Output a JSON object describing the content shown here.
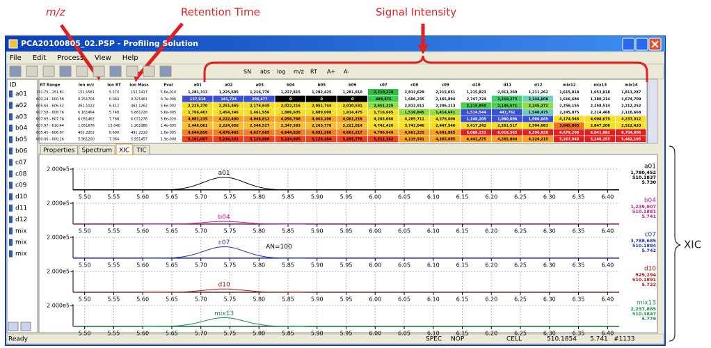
{
  "annotations": {
    "mz": "m/z",
    "retention_time": "Retention Time",
    "signal_intensity": "Signal Intensity",
    "xic": "XIC"
  },
  "window": {
    "title": "PCA20100805_02.PSP - Profiling Solution"
  },
  "menu": [
    "File",
    "Edit",
    "Process",
    "View",
    "Help"
  ],
  "toolbar": [
    "SN",
    "abs",
    "log",
    "m/z",
    "RT",
    "A+",
    "A-"
  ],
  "id_list": {
    "header": "ID",
    "items": [
      "a01",
      "a02",
      "a03",
      "b04",
      "b05",
      "b06",
      "c07",
      "c08",
      "c09",
      "d10",
      "d11",
      "d12",
      "mix",
      "mix",
      "mix"
    ]
  },
  "table": {
    "header": [
      "RT Range",
      "Ion m/z",
      "Ion RT",
      "Ion Mass",
      "Pval",
      "a01",
      "a02",
      "a03",
      "b04",
      "b05",
      "b06",
      "c07",
      "c08",
      "c09",
      "d10",
      "d11",
      "d12",
      "mix12",
      "mix13",
      "mix14"
    ],
    "rows": [
      {
        "cells": [
          "151.75 - 151.81",
          "151.1581",
          "5.270",
          "152.1417",
          "5.6e-010",
          "1,281,313",
          "1,225,695",
          "1,216,776",
          "1,227,815",
          "1,282,425",
          "1,281,810",
          "2,210,229",
          "2,812,629",
          "2,215,051",
          "1,215,823",
          "2,011,209",
          "1,211,262",
          "1,615,818",
          "1,653,818",
          "1,811,287"
        ],
        "colors": [
          "#ffffff",
          "#ffffff",
          "#ffffff",
          "#ffffff",
          "#ffffff",
          "#ffffff",
          "#2fbf3f",
          "#ffffff",
          "#ffffff",
          "#ffffff",
          "#ffffff",
          "#ffffff",
          "#ffffff",
          "#ffffff",
          "#ffffff"
        ]
      },
      {
        "cells": [
          "600.24 - 600.56",
          "0.251704",
          "0.064",
          "0.321461",
          "6.7e-006",
          "127,918",
          "141,724",
          "206,477",
          "0",
          "0",
          "0",
          "489,875",
          "1,606,235",
          "2,165,894",
          "2,747,724",
          "2,210,273",
          "2,144,608",
          "1,616,684",
          "1,380,214",
          "1,674,709"
        ],
        "colors": [
          "#3b50d8",
          "#3b50d8",
          "#3b50d8",
          "#000000",
          "#000000",
          "#000000",
          "#3fcf4f",
          "#ffffff",
          "#ffffff",
          "#ffffff",
          "#3fcf6f",
          "#6fd0c0",
          "#ffffff",
          "#ffffff",
          "#ffffff"
        ]
      },
      {
        "cells": [
          "605.65 - 606.52",
          "461.1022",
          "6.412",
          "462.1262",
          "5.6e-002",
          "2,225,270",
          "2,251,465",
          "2,176,645",
          "2,022,216",
          "2,051,744",
          "2,010,531",
          "2,651,225",
          "2,812,011",
          "2,206,213",
          "2,215,850",
          "2,145,571",
          "2,245,271",
          "2,256,155",
          "2,258,514",
          "2,212,252"
        ],
        "colors": [
          "#f8e020",
          "#f8e020",
          "#f8e020",
          "#f8e020",
          "#f8e020",
          "#f8e020",
          "#8fdf3f",
          "#ffffff",
          "#ffffff",
          "#4fcf4f",
          "#4fcf4f",
          "#8fdf3f",
          "#ffffff",
          "#ffffff",
          "#ffffff"
        ]
      },
      {
        "cells": [
          "607.58 - 608.76",
          "6.161464",
          "5.748",
          "5.861728",
          "5.6e-005",
          "1,766,463",
          "1,454,346",
          "1,461,956",
          "1,886,605",
          "1,889,008",
          "1,814,475",
          "1,716,665",
          "1,516,845",
          "1,414,641",
          "1,514,544",
          "441,761",
          "1,540,475",
          "2,245,875",
          "2,214,468",
          "2,116,668"
        ],
        "colors": [
          "#f8e020",
          "#f8e020",
          "#f8e020",
          "#f8e020",
          "#f8e020",
          "#f8e020",
          "#f8e020",
          "#8fdf3f",
          "#8fdf3f",
          "#3b50d8",
          "#3b50d8",
          "#6fd0c0",
          "#ffffff",
          "#ffffff",
          "#ffffff"
        ]
      },
      {
        "cells": [
          "607.65 - 607.76",
          "6.051462",
          "7.768",
          "6.071276",
          "5.6e-020",
          "4,081,235",
          "4,222,460",
          "4,048,812",
          "4,056,768",
          "4,063,206",
          "4,061,218",
          "4,203,066",
          "4,285,711",
          "4,276,006",
          "1,246,205",
          "1,060,006",
          "1,006,045",
          "4,174,546",
          "4,008,675",
          "4,237,012"
        ],
        "colors": [
          "#f8a020",
          "#f8a020",
          "#f8a020",
          "#f8a020",
          "#f8a020",
          "#f8a020",
          "#f8e020",
          "#f8e020",
          "#f8e020",
          "#3b50d8",
          "#3b50d8",
          "#3b50d8",
          "#f8e020",
          "#f8e020",
          "#f8e020"
        ]
      },
      {
        "cells": [
          "607.97 - 610.44",
          "1.051676",
          "13.040",
          "1.261986",
          "1.4e-005",
          "2,446,061",
          "2,224,656",
          "2,546,527",
          "2,347,283",
          "2,265,776",
          "2,221,014",
          "4,742,426",
          "3,741,646",
          "2,447,546",
          "3,417,242",
          "2,261,517",
          "2,594,083",
          "3,845,005",
          "2,847,206",
          "2,512,420"
        ],
        "colors": [
          "#f8c030",
          "#f8c030",
          "#f8c030",
          "#f8c030",
          "#f8c030",
          "#f8c030",
          "#f8e020",
          "#f8e020",
          "#f8e020",
          "#f8e020",
          "#f8e020",
          "#f8e020",
          "#f07020",
          "#f8e020",
          "#f8e020"
        ]
      },
      {
        "cells": [
          "605.45 - 606.67",
          "462.2202",
          "6.690",
          "491.2219",
          "1.6e-005",
          "4,644,856",
          "4,476,465",
          "4,627,665",
          "4,644,828",
          "4,681,266",
          "4,661,217",
          "4,706,649",
          "4,661,225",
          "4,641,865",
          "6,088,231",
          "6,018,565",
          "6,296,628",
          "6,676,208",
          "6,041,862",
          "6,704,606"
        ],
        "colors": [
          "#f08020",
          "#f08020",
          "#f08020",
          "#f08020",
          "#f08020",
          "#f08020",
          "#f8a020",
          "#f8a020",
          "#f8a020",
          "#e02020",
          "#e02020",
          "#e02020",
          "#e02020",
          "#e02020",
          "#e02020"
        ]
      },
      {
        "cells": [
          "600.06 - 600.16",
          "5.961200",
          "7.064",
          "5.951457",
          "1.9e-008",
          "5,101,067",
          "5,236,252",
          "5,120,800",
          "5,124,805",
          "5,126,164",
          "5,205,779",
          "5,211,162",
          "4,119,541",
          "4,265,605",
          "4,441,275",
          "4,265,864",
          "4,224,215",
          "5,267,043",
          "5,246,255",
          "5,462,105"
        ],
        "colors": [
          "#f04020",
          "#f04020",
          "#f04020",
          "#f04020",
          "#f04020",
          "#f04020",
          "#f04020",
          "#f8a020",
          "#f8a020",
          "#f8a020",
          "#f8a020",
          "#f8a020",
          "#e02020",
          "#e02020",
          "#e02020"
        ]
      }
    ]
  },
  "tabs": [
    "Properties",
    "Spectrum",
    "XIC",
    "TIC"
  ],
  "active_tab": 2,
  "xic": {
    "xlim": [
      5.48,
      6.42
    ],
    "xticks": [
      {
        "value": 5.5,
        "label": "5.50"
      },
      {
        "value": 5.55,
        "label": "5.55"
      },
      {
        "value": 5.6,
        "label": "5.60"
      },
      {
        "value": 5.65,
        "label": "5.65"
      },
      {
        "value": 5.7,
        "label": "5.70"
      },
      {
        "value": 5.75,
        "label": "5.75"
      },
      {
        "value": 5.8,
        "label": "5.80"
      },
      {
        "value": 5.85,
        "label": "5.85"
      },
      {
        "value": 5.9,
        "label": "5.90"
      },
      {
        "value": 5.95,
        "label": "5.95"
      },
      {
        "value": 6.0,
        "label": "6.00"
      },
      {
        "value": 6.05,
        "label": "6.05"
      },
      {
        "value": 6.1,
        "label": "6.10"
      },
      {
        "value": 6.15,
        "label": "6.15"
      },
      {
        "value": 6.2,
        "label": "6.20"
      },
      {
        "value": 6.25,
        "label": "6.25"
      },
      {
        "value": 6.3,
        "label": "6.30"
      },
      {
        "value": 6.35,
        "label": "6.35"
      },
      {
        "value": 6.4,
        "label": "6.40"
      }
    ],
    "ylim": [
      0,
      200000
    ],
    "ytick": {
      "value": 200000,
      "label": "2.000e5"
    },
    "panels": [
      {
        "name": "a01",
        "color": "#000000",
        "peak_rt": 5.74,
        "peak_height": 122000,
        "info": [
          "1,780,452",
          "510.1837",
          "5.730"
        ]
      },
      {
        "name": "b04",
        "color": "#c0208a",
        "peak_rt": 5.74,
        "peak_height": 26000,
        "info": [
          "1,239,907",
          "510.1881",
          "5.741"
        ]
      },
      {
        "name": "c07",
        "color": "#2030c0",
        "peak_rt": 5.74,
        "peak_height": 110000,
        "note": "AN=100",
        "info": [
          "3,788,685",
          "510.1884",
          "5.742"
        ]
      },
      {
        "name": "d10",
        "color": "#a01818",
        "peak_rt": 5.74,
        "peak_height": 32000,
        "info": [
          "929,294",
          "510.1891",
          "5.722"
        ]
      },
      {
        "name": "mix13",
        "color": "#189040",
        "peak_rt": 5.74,
        "peak_height": 84000,
        "info": [
          "2,257,885",
          "510.1847",
          "5.779"
        ]
      }
    ]
  },
  "status": [
    "Ready",
    "SPEC",
    "NOP",
    "CELL",
    "510.1854",
    "5.741",
    "#1133"
  ]
}
